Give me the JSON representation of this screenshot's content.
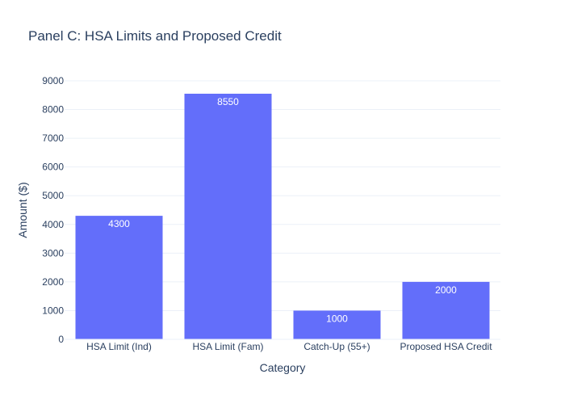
{
  "chart_data": {
    "type": "bar",
    "title": "Panel C: HSA Limits and Proposed Credit",
    "xlabel": "Category",
    "ylabel": "Amount ($)",
    "categories": [
      "HSA Limit (Ind)",
      "HSA Limit (Fam)",
      "Catch-Up (55+)",
      "Proposed HSA Credit"
    ],
    "values": [
      4300,
      8550,
      1000,
      2000
    ],
    "data_labels": [
      "4300",
      "8550",
      "1000",
      "2000"
    ],
    "ylim": [
      0,
      9000
    ],
    "yticks": [
      0,
      1000,
      2000,
      3000,
      4000,
      5000,
      6000,
      7000,
      8000,
      9000
    ],
    "grid": true,
    "legend": "none",
    "colors": {
      "bar": "#636efa",
      "grid": "#ebf0f8",
      "text": "#2a3f5f",
      "label_inside": "#ffffff"
    }
  }
}
